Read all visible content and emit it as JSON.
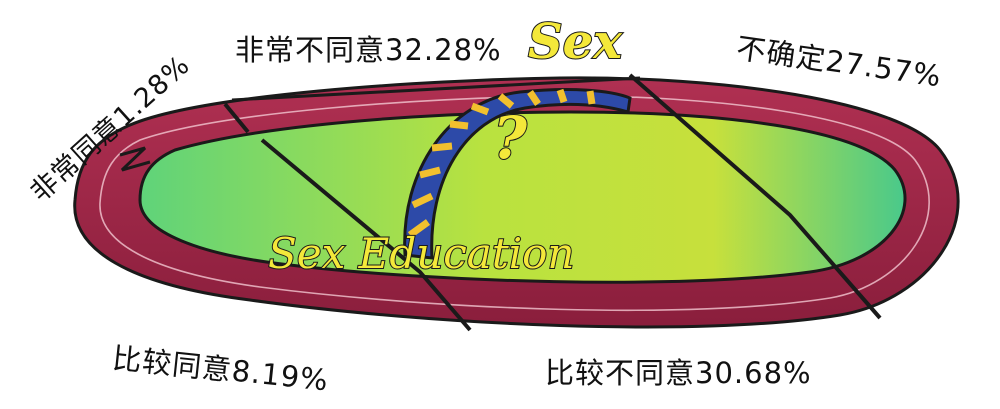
{
  "chart_data": {
    "type": "pie",
    "categories": [
      "非常同意",
      "非常不同意",
      "不确定",
      "比较同意",
      "比较不同意"
    ],
    "values": [
      1.28,
      32.28,
      27.57,
      8.19,
      30.68
    ],
    "value_labels": [
      "1.28%",
      "32.28%",
      "27.57%",
      "8.19%",
      "30.68%"
    ],
    "slice_labels": [
      "非常同意1.28%",
      "非常不同意32.28%",
      "不确定27.57%",
      "比较同意8.19%",
      "比较不同意30.68%"
    ]
  },
  "illustration": {
    "title_text": "Sex",
    "subtitle_text": "Sex Education",
    "question_mark": "?"
  },
  "colors": {
    "track": "#9c2642",
    "track_dark": "#6e1430",
    "field_green": "#6fd86a",
    "field_yellow": "#d4e33c",
    "arch_blue": "#2d4aa8",
    "arch_yellow": "#f2c02e",
    "ink": "#1a1a1a"
  }
}
